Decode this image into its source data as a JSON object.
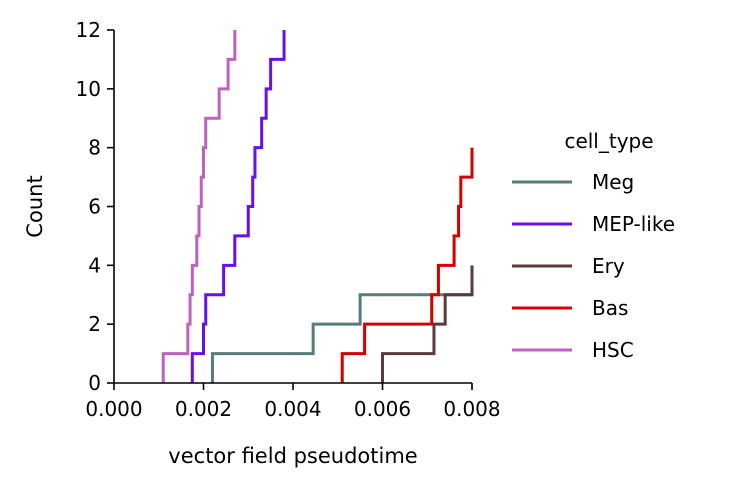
{
  "chart_data": {
    "type": "line",
    "subtype": "step-histogram-cumulative",
    "xlabel": "vector field pseudotime",
    "ylabel": "Count",
    "xlim": [
      0.0,
      0.008
    ],
    "ylim": [
      0,
      12
    ],
    "x_ticks": [
      "0.000",
      "0.002",
      "0.004",
      "0.006",
      "0.008"
    ],
    "y_ticks": [
      "0",
      "2",
      "4",
      "6",
      "8",
      "10",
      "12"
    ],
    "grid": false,
    "legend": {
      "title": "cell_type",
      "placement": "right"
    },
    "series": [
      {
        "name": "Meg",
        "color": "#587b7b",
        "points": [
          [
            0.0022,
            0
          ],
          [
            0.0022,
            1
          ],
          [
            0.00445,
            1
          ],
          [
            0.00445,
            2
          ],
          [
            0.0055,
            2
          ],
          [
            0.0055,
            3
          ],
          [
            0.008,
            3
          ]
        ]
      },
      {
        "name": "MEP-like",
        "color": "#6a0fe6",
        "points": [
          [
            0.00175,
            0
          ],
          [
            0.00175,
            1
          ],
          [
            0.002,
            1
          ],
          [
            0.002,
            2
          ],
          [
            0.00205,
            2
          ],
          [
            0.00205,
            3
          ],
          [
            0.00245,
            3
          ],
          [
            0.00245,
            4
          ],
          [
            0.0027,
            4
          ],
          [
            0.0027,
            5
          ],
          [
            0.003,
            5
          ],
          [
            0.003,
            6
          ],
          [
            0.0031,
            6
          ],
          [
            0.0031,
            7
          ],
          [
            0.00315,
            7
          ],
          [
            0.00315,
            8
          ],
          [
            0.0033,
            8
          ],
          [
            0.0033,
            9
          ],
          [
            0.0034,
            9
          ],
          [
            0.0034,
            10
          ],
          [
            0.0035,
            10
          ],
          [
            0.0035,
            11
          ],
          [
            0.0038,
            11
          ],
          [
            0.0038,
            12
          ]
        ]
      },
      {
        "name": "Ery",
        "color": "#5b3a3a",
        "points": [
          [
            0.006,
            0
          ],
          [
            0.006,
            1
          ],
          [
            0.00715,
            1
          ],
          [
            0.00715,
            2
          ],
          [
            0.0074,
            2
          ],
          [
            0.0074,
            3
          ],
          [
            0.008,
            3
          ],
          [
            0.008,
            4
          ]
        ]
      },
      {
        "name": "Bas",
        "color": "#d40000",
        "points": [
          [
            0.0051,
            0
          ],
          [
            0.0051,
            1
          ],
          [
            0.0056,
            1
          ],
          [
            0.0056,
            2
          ],
          [
            0.0071,
            2
          ],
          [
            0.0071,
            3
          ],
          [
            0.00725,
            3
          ],
          [
            0.00725,
            4
          ],
          [
            0.0076,
            4
          ],
          [
            0.0076,
            5
          ],
          [
            0.0077,
            5
          ],
          [
            0.0077,
            6
          ],
          [
            0.00775,
            6
          ],
          [
            0.00775,
            7
          ],
          [
            0.008,
            7
          ],
          [
            0.008,
            8
          ]
        ]
      },
      {
        "name": "HSC",
        "color": "#c060c0",
        "points": [
          [
            0.0011,
            0
          ],
          [
            0.0011,
            1
          ],
          [
            0.00165,
            1
          ],
          [
            0.00165,
            2
          ],
          [
            0.0017,
            2
          ],
          [
            0.0017,
            3
          ],
          [
            0.00175,
            3
          ],
          [
            0.00175,
            4
          ],
          [
            0.00185,
            4
          ],
          [
            0.00185,
            5
          ],
          [
            0.0019,
            5
          ],
          [
            0.0019,
            6
          ],
          [
            0.00195,
            6
          ],
          [
            0.00195,
            7
          ],
          [
            0.002,
            7
          ],
          [
            0.002,
            8
          ],
          [
            0.00205,
            8
          ],
          [
            0.00205,
            9
          ],
          [
            0.00235,
            9
          ],
          [
            0.00235,
            10
          ],
          [
            0.00255,
            10
          ],
          [
            0.00255,
            11
          ],
          [
            0.0027,
            11
          ],
          [
            0.0027,
            12
          ]
        ]
      }
    ]
  }
}
